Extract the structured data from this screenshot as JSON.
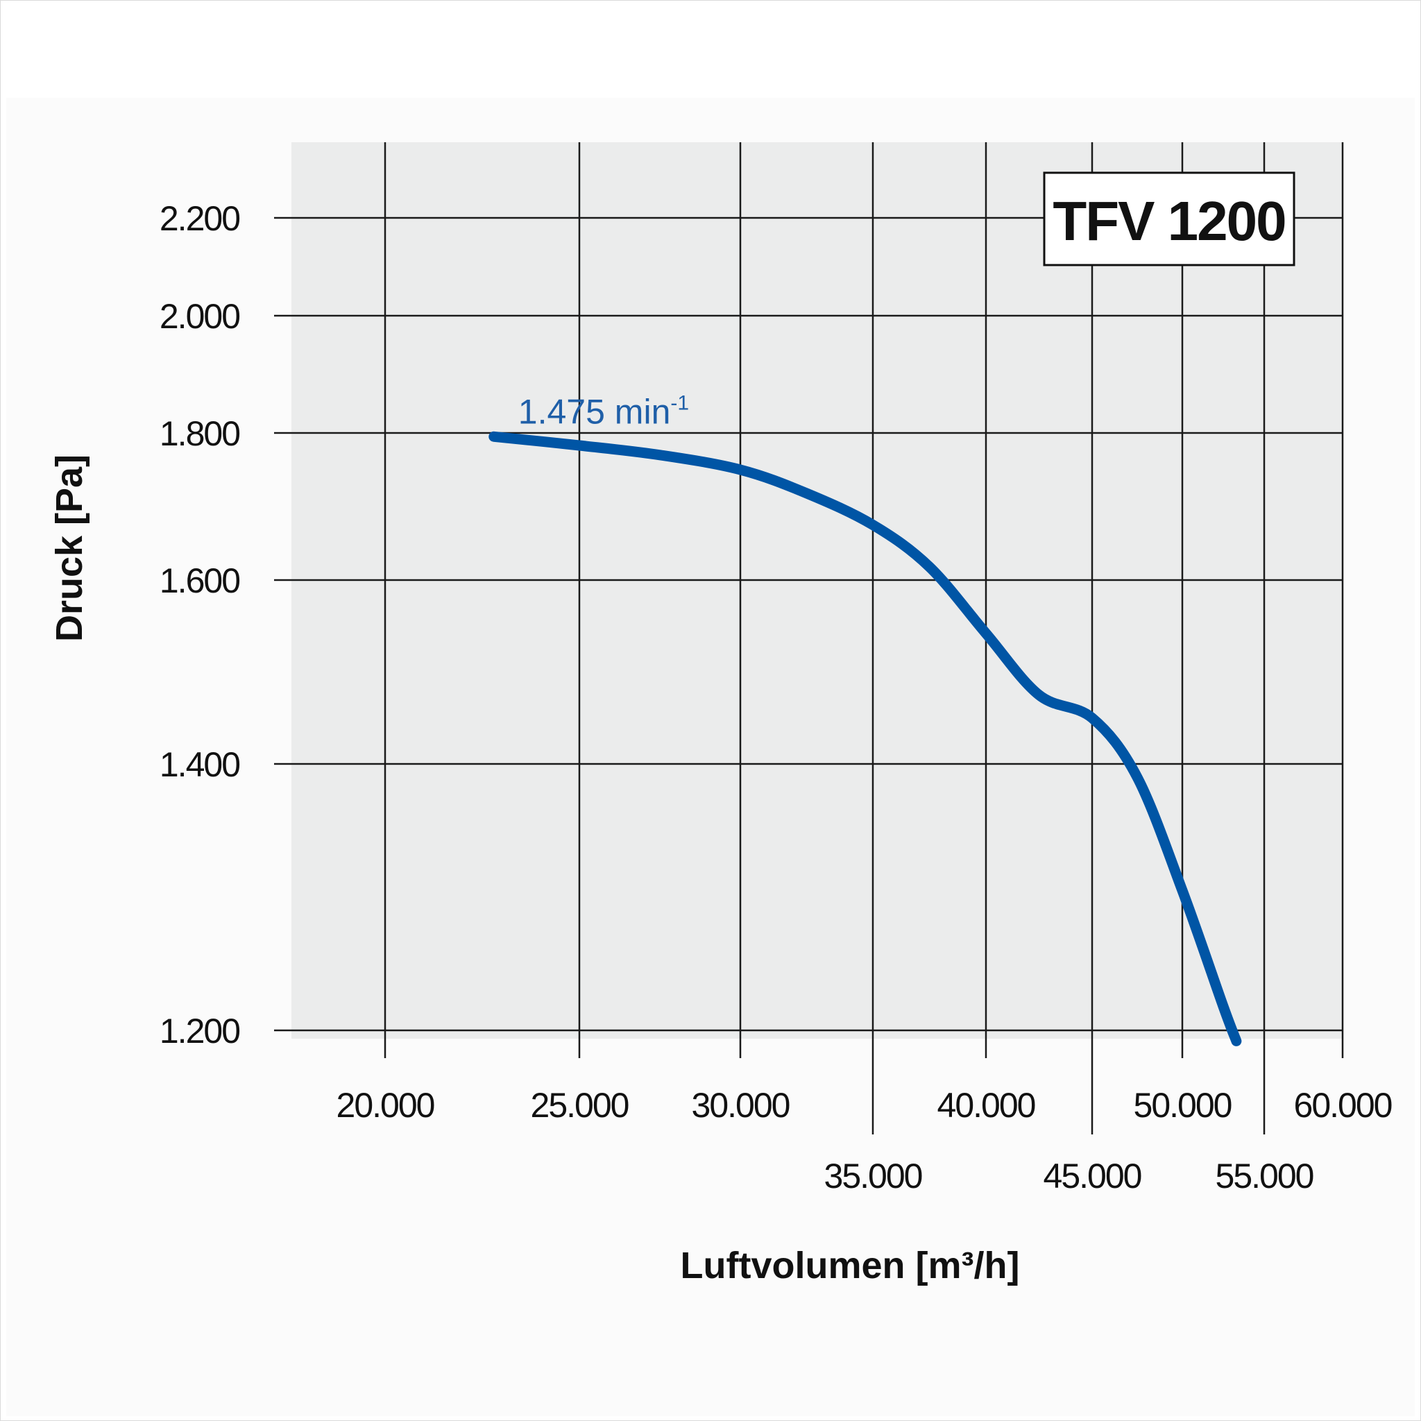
{
  "chart_data": {
    "type": "line",
    "title": "TFV 1200",
    "xlabel": "Luftvolumen [m³/h]",
    "ylabel": "Druck [Pa]",
    "xlim": [
      17500,
      62500
    ],
    "ylim": [
      1180,
      2310
    ],
    "x_ticks": [
      {
        "value": 20000,
        "label": "20.000",
        "row": 1
      },
      {
        "value": 25000,
        "label": "25.000",
        "row": 1
      },
      {
        "value": 30000,
        "label": "30.000",
        "row": 1
      },
      {
        "value": 35000,
        "label": "35.000",
        "row": 2
      },
      {
        "value": 40000,
        "label": "40.000",
        "row": 1
      },
      {
        "value": 45000,
        "label": "45.000",
        "row": 2
      },
      {
        "value": 50000,
        "label": "50.000",
        "row": 1
      },
      {
        "value": 55000,
        "label": "55.000",
        "row": 2
      },
      {
        "value": 60000,
        "label": "60.000",
        "row": 1
      }
    ],
    "y_ticks": [
      {
        "value": 1200,
        "label": "1.200"
      },
      {
        "value": 1400,
        "label": "1.400"
      },
      {
        "value": 1600,
        "label": "1.600"
      },
      {
        "value": 1800,
        "label": "1.800"
      },
      {
        "value": 2000,
        "label": "2.000"
      },
      {
        "value": 2200,
        "label": "2.200"
      }
    ],
    "grid": true,
    "series": [
      {
        "name": "1.475 min⁻¹",
        "color": "#0055a5",
        "x": [
          22800,
          25000,
          27500,
          30000,
          32500,
          35000,
          37500,
          40000,
          42500,
          45000,
          47500,
          50000,
          52500,
          53300
        ],
        "y": [
          1795,
          1783,
          1770,
          1750,
          1718,
          1675,
          1618,
          1542,
          1475,
          1450,
          1390,
          1305,
          1218,
          1192
        ]
      }
    ],
    "annotations": [
      {
        "text": "1.475 min",
        "superscript": "-1",
        "x": 22800,
        "y": 1830
      }
    ],
    "legend": "top-right"
  },
  "colors": {
    "plot_background": "#ebecec",
    "grid": "#1a1a1a",
    "curve": "#0055a5",
    "annotation": "#1f5fa8"
  }
}
